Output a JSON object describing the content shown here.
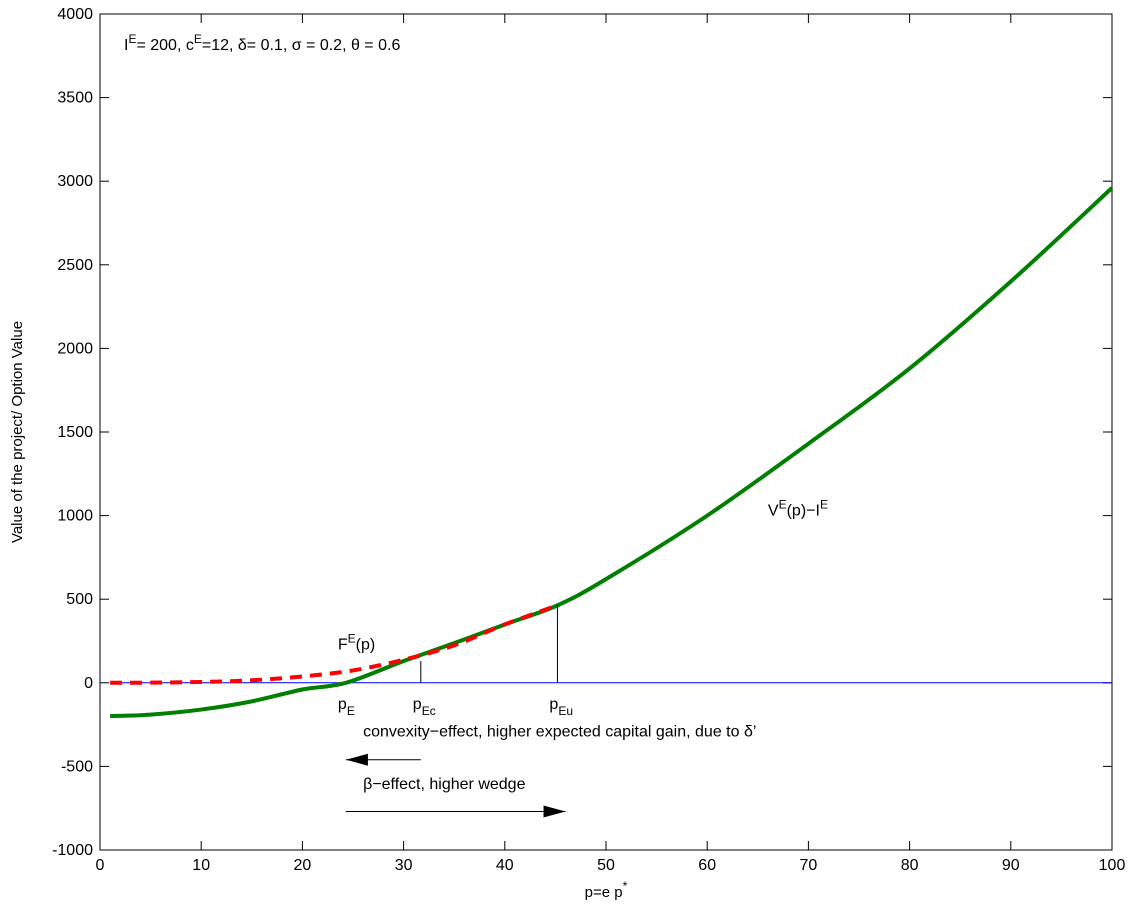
{
  "chart_data": {
    "type": "line",
    "title": "",
    "params_text": "I^E= 200, c^E=12, δ= 0.1, σ = 0.2,  θ = 0.6",
    "xlabel": "p=e p^*",
    "ylabel": "Value of the project/ Option Value",
    "xlim": [
      0,
      100
    ],
    "ylim": [
      -1000,
      4000
    ],
    "xticks": [
      0,
      10,
      20,
      30,
      40,
      50,
      60,
      70,
      80,
      90,
      100
    ],
    "yticks": [
      -1000,
      -500,
      0,
      500,
      1000,
      1500,
      2000,
      2500,
      3000,
      3500,
      4000
    ],
    "grid": false,
    "series": [
      {
        "name": "V^E(p)−I^E",
        "style": "solid",
        "color": "#007f00",
        "x": [
          1,
          5,
          10,
          15,
          20,
          24.3,
          30,
          35,
          40,
          45.2,
          50,
          60,
          70,
          80,
          90,
          100
        ],
        "y": [
          -199,
          -190,
          -160,
          -111,
          -40,
          0,
          130,
          237,
          349,
          463,
          620,
          1000,
          1430,
          1880,
          2400,
          2960
        ]
      },
      {
        "name": "F^E(p)",
        "style": "dashed",
        "color": "#ff0000",
        "x": [
          1,
          5,
          10,
          15,
          20,
          25,
          30,
          35,
          40,
          45.2
        ],
        "y": [
          0,
          1,
          5,
          15,
          38,
          74,
          138,
          224,
          349,
          463
        ]
      },
      {
        "name": "zero-line",
        "style": "solid",
        "color": "#0000ff",
        "x": [
          1,
          100
        ],
        "y": [
          0,
          0
        ]
      }
    ],
    "thresholds": [
      {
        "label": "p",
        "subscript": "E",
        "x": 24.3
      },
      {
        "label": "p",
        "subscript": "Ec",
        "x": 31.7,
        "y": 130
      },
      {
        "label": "p",
        "subscript": "Eu",
        "x": 45.2,
        "y": 463
      }
    ],
    "annotations": [
      {
        "text": "V^E(p)−I^E",
        "x": 66,
        "y": 1000
      },
      {
        "text": "F^E(p)",
        "x": 23.5,
        "y": 200
      }
    ],
    "arrows": [
      {
        "text": "convexity−effect, higher expected capital gain, due to δ’",
        "x_from": 31.7,
        "x_to": 24.3,
        "y": -460,
        "text_x": 26,
        "text_y": -320
      },
      {
        "text": "β−effect, higher wedge",
        "x_from": 24.3,
        "x_to": 46,
        "y": -770,
        "text_x": 26,
        "text_y": -635
      }
    ]
  }
}
